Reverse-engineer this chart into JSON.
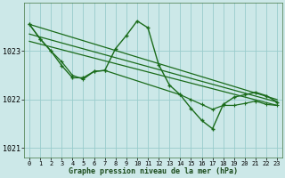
{
  "bg_color": "#cce8e8",
  "plot_bg_color": "#cce8e8",
  "grid_color": "#99cccc",
  "line_color": "#1a6b1a",
  "title": "Graphe pression niveau de la mer (hPa)",
  "xlim": [
    -0.5,
    23.5
  ],
  "ylim": [
    1020.8,
    1024.0
  ],
  "yticks": [
    1021,
    1022,
    1023
  ],
  "xticks": [
    0,
    1,
    2,
    3,
    4,
    5,
    6,
    7,
    8,
    9,
    10,
    11,
    12,
    13,
    14,
    15,
    16,
    17,
    18,
    19,
    20,
    21,
    22,
    23
  ],
  "series_main": {
    "x": [
      0,
      1,
      2,
      3,
      4,
      5,
      6,
      7,
      8,
      9,
      10,
      11,
      12,
      13,
      14,
      15,
      16,
      17,
      18,
      19,
      20,
      21,
      22,
      23
    ],
    "y": [
      1023.55,
      1023.25,
      1023.0,
      1022.7,
      1022.45,
      1022.45,
      1022.58,
      1022.6,
      1023.05,
      1023.32,
      1023.62,
      1023.48,
      1022.72,
      1022.3,
      1022.1,
      1021.82,
      1021.57,
      1021.4,
      1021.9,
      1022.05,
      1022.1,
      1022.15,
      1022.08,
      1021.95
    ]
  },
  "series_trend1": {
    "x": [
      0,
      23
    ],
    "y": [
      1023.55,
      1022.0
    ]
  },
  "series_trend2": {
    "x": [
      0,
      23
    ],
    "y": [
      1023.35,
      1021.95
    ]
  },
  "series_trend3": {
    "x": [
      0,
      23
    ],
    "y": [
      1023.2,
      1021.88
    ]
  },
  "series_smooth": {
    "x": [
      0,
      1,
      2,
      3,
      4,
      5,
      6,
      7,
      14,
      15,
      16,
      17,
      18,
      19,
      20,
      21,
      22,
      23
    ],
    "y": [
      1023.55,
      1023.25,
      1023.0,
      1022.78,
      1022.5,
      1022.42,
      1022.58,
      1022.6,
      1022.1,
      1022.0,
      1021.9,
      1021.8,
      1021.88,
      1021.88,
      1021.92,
      1021.97,
      1021.9,
      1021.88
    ]
  }
}
